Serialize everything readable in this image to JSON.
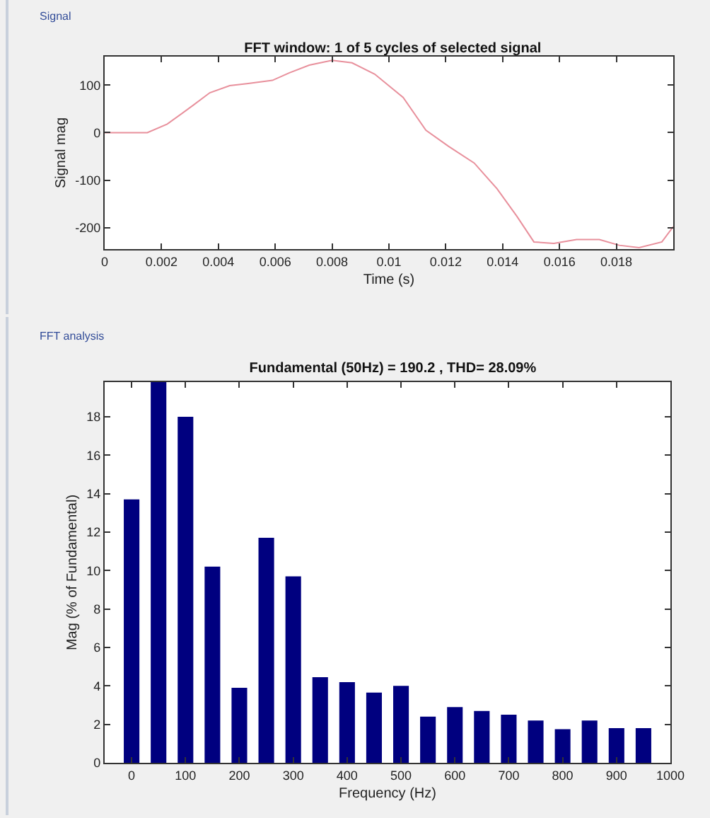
{
  "chart_data": [
    {
      "type": "line",
      "title": "FFT window: 1 of 5 cycles of selected signal",
      "xlabel": "Time (s)",
      "ylabel": "Signal mag",
      "annotations": [
        "Signal"
      ],
      "x": [
        0,
        0.0015,
        0.0022,
        0.0031,
        0.0037,
        0.0044,
        0.005,
        0.0059,
        0.0065,
        0.0072,
        0.008,
        0.0087,
        0.0095,
        0.0105,
        0.0113,
        0.0121,
        0.013,
        0.0138,
        0.0145,
        0.0151,
        0.0158,
        0.0166,
        0.0174,
        0.0181,
        0.0188,
        0.0196,
        0.02
      ],
      "series": [
        {
          "color": "#e8909c",
          "values": [
            0,
            0,
            18,
            57,
            84,
            99,
            103,
            110,
            126,
            142,
            152,
            147,
            123,
            74,
            5,
            -29,
            -64,
            -118,
            -176,
            -230,
            -233,
            -225,
            -225,
            -237,
            -242,
            -230,
            -198
          ]
        }
      ],
      "xlim": [
        0,
        0.02
      ],
      "xticks": [
        0,
        0.002,
        0.004,
        0.006,
        0.008,
        0.01,
        0.012,
        0.014,
        0.016,
        0.018
      ],
      "ylim": [
        -245,
        160
      ],
      "yticks": [
        -200,
        -100,
        0,
        100
      ],
      "grid": false,
      "legend": false,
      "line_style": "solid",
      "marker": "none"
    },
    {
      "type": "bar",
      "title": "Fundamental (50Hz) = 190.2 , THD= 28.09%",
      "xlabel": "Frequency (Hz)",
      "ylabel": "Mag (% of Fundamental)",
      "annotations": [
        "FFT analysis"
      ],
      "x": [
        0,
        50,
        100,
        150,
        200,
        250,
        300,
        350,
        400,
        450,
        500,
        550,
        600,
        650,
        700,
        750,
        800,
        850,
        900,
        950
      ],
      "series": [
        {
          "color": "#00007f",
          "values": [
            13.7,
            19.8,
            18,
            10.2,
            3.9,
            11.7,
            9.7,
            4.45,
            4.2,
            3.65,
            4.0,
            2.4,
            2.9,
            2.7,
            2.5,
            2.2,
            1.75,
            2.2,
            1.8,
            1.8
          ]
        }
      ],
      "xlim": [
        -50,
        1000
      ],
      "xticks": [
        0,
        100,
        200,
        300,
        400,
        500,
        600,
        700,
        800,
        900,
        1000
      ],
      "ylim": [
        0,
        19.8
      ],
      "yticks": [
        0,
        2,
        4,
        6,
        8,
        10,
        12,
        14,
        16,
        18
      ],
      "grid": false,
      "legend": false
    }
  ]
}
